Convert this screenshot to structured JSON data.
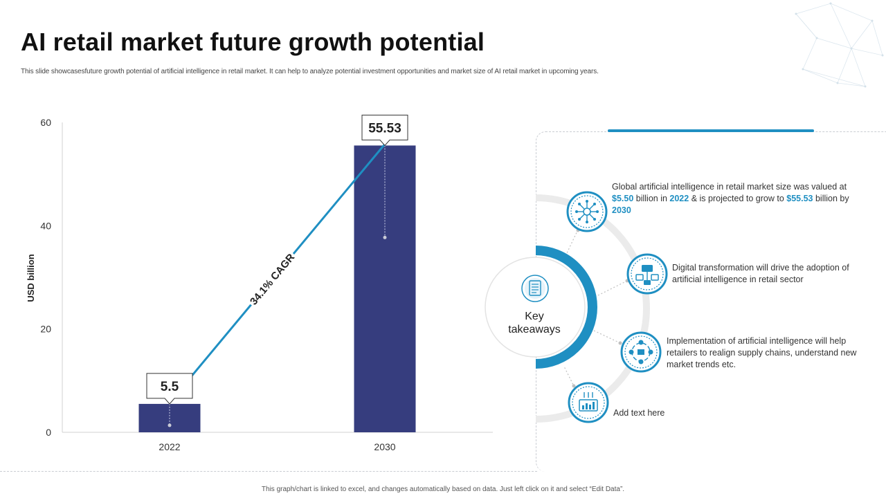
{
  "slide": {
    "title": "AI retail market future growth potential",
    "subtitle": "This slide showcasesfuture growth potential of artificial intelligence in retail market. It can help to analyze potential investment opportunities and market size of AI retail market in upcoming years.",
    "footer_note": "This graph/chart is linked to excel, and changes automatically based on data. Just left click on it and select “Edit Data”."
  },
  "chart_data": {
    "type": "bar",
    "categories": [
      "2022",
      "2030"
    ],
    "values": [
      5.5,
      55.53
    ],
    "value_labels": [
      "5.5",
      "55.53"
    ],
    "ylabel": "USD billion",
    "xlabel": "",
    "ylim": [
      0,
      60
    ],
    "yticks": [
      "0",
      "20",
      "40",
      "60"
    ],
    "annotation": "34.1% CAGR",
    "bar_color": "#363d7e",
    "line_color": "#1f8fc2",
    "grid": false
  },
  "takeaways": {
    "center_label_line1": "Key",
    "center_label_line2": "takeaways",
    "center_icon": "document-list-icon",
    "items": [
      {
        "icon": "ai-network-icon",
        "parts": [
          "Global artificial intelligence in retail market size was valued at ",
          "$5.50",
          " billion in ",
          "2022",
          " & is projected to grow to ",
          "$55.53",
          " billion by ",
          "2030"
        ]
      },
      {
        "icon": "digital-transformation-icon",
        "text": "Digital transformation will drive the adoption of artificial intelligence in retail sector"
      },
      {
        "icon": "supply-chain-icon",
        "text": "Implementation of artificial intelligence will help retailers to realign supply chains, understand new market trends etc."
      },
      {
        "icon": "analytics-icon",
        "text": "Add text here"
      }
    ]
  },
  "colors": {
    "accent": "#1f8fc2",
    "bar": "#363d7e",
    "ring_gray": "#ebebeb"
  }
}
